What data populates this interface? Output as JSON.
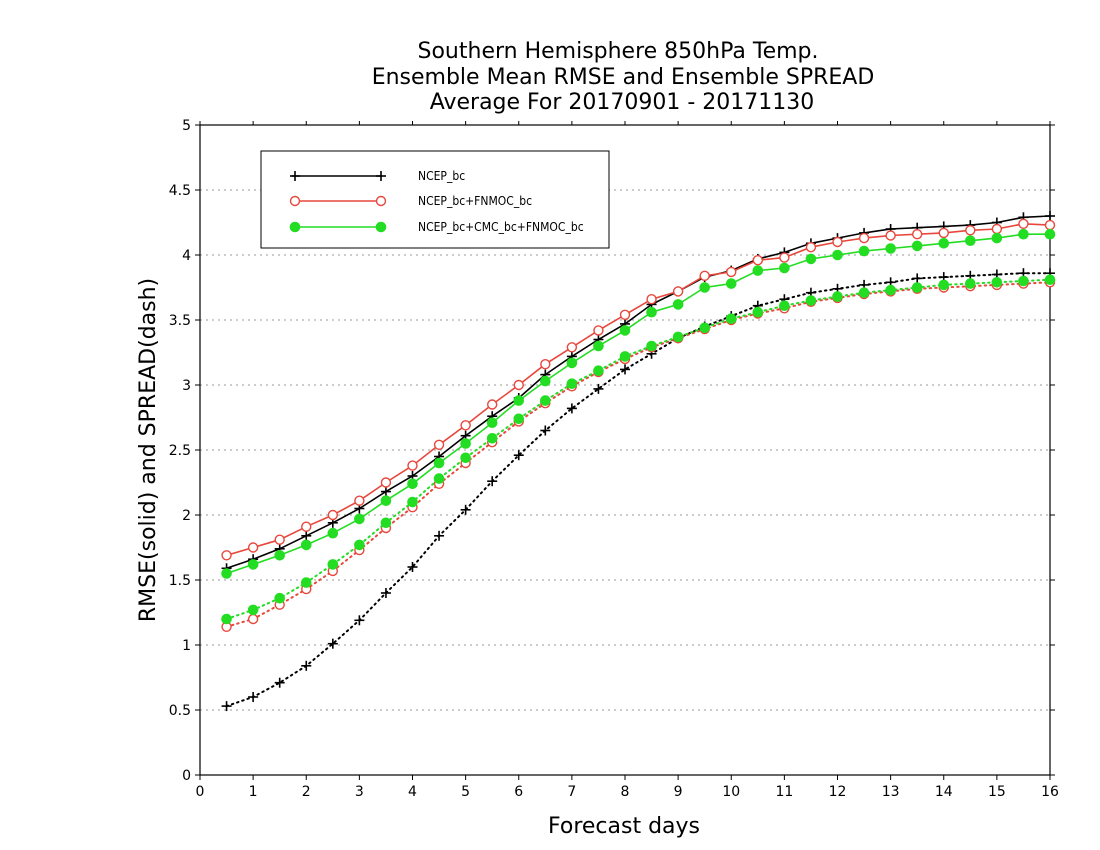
{
  "chart_data": {
    "type": "line",
    "title": [
      "Southern Hemisphere 850hPa Temp.",
      "Ensemble Mean RMSE and Ensemble SPREAD",
      "Average For 20170901 - 20171130"
    ],
    "xlabel": "Forecast days",
    "ylabel": "RMSE(solid) and SPREAD(dash)",
    "xlim": [
      0,
      16
    ],
    "ylim": [
      0,
      5
    ],
    "xticks": [
      "0",
      "1",
      "2",
      "3",
      "4",
      "5",
      "6",
      "7",
      "8",
      "9",
      "10",
      "11",
      "12",
      "13",
      "14",
      "15",
      "16"
    ],
    "yticks": [
      "0",
      "0.5",
      "1",
      "1.5",
      "2",
      "2.5",
      "3",
      "3.5",
      "4",
      "4.5",
      "5"
    ],
    "grid": "horizontal dotted",
    "legend_position": "top-left",
    "x": [
      0.5,
      1,
      1.5,
      2,
      2.5,
      3,
      3.5,
      4,
      4.5,
      5,
      5.5,
      6,
      6.5,
      7,
      7.5,
      8,
      8.5,
      9,
      9.5,
      10,
      10.5,
      11,
      11.5,
      12,
      12.5,
      13,
      13.5,
      14,
      14.5,
      15,
      15.5,
      16
    ],
    "series": [
      {
        "name": "NCEP_bc",
        "color": "#000000",
        "marker": "plus",
        "rmse": [
          1.59,
          1.66,
          1.74,
          1.84,
          1.94,
          2.05,
          2.18,
          2.3,
          2.45,
          2.61,
          2.76,
          2.9,
          3.08,
          3.22,
          3.35,
          3.47,
          3.62,
          3.72,
          3.83,
          3.88,
          3.97,
          4.02,
          4.09,
          4.13,
          4.17,
          4.2,
          4.21,
          4.22,
          4.23,
          4.25,
          4.29,
          4.3
        ],
        "spread": [
          0.53,
          0.6,
          0.71,
          0.84,
          1.01,
          1.19,
          1.4,
          1.6,
          1.84,
          2.04,
          2.26,
          2.46,
          2.65,
          2.82,
          2.97,
          3.12,
          3.24,
          3.36,
          3.45,
          3.53,
          3.61,
          3.66,
          3.71,
          3.74,
          3.77,
          3.79,
          3.82,
          3.83,
          3.84,
          3.85,
          3.86,
          3.86
        ]
      },
      {
        "name": "NCEP_bc+FNMOC_bc",
        "color": "#e8473c",
        "marker": "open-circle",
        "rmse": [
          1.69,
          1.75,
          1.81,
          1.91,
          2.0,
          2.11,
          2.25,
          2.38,
          2.54,
          2.69,
          2.85,
          3.0,
          3.16,
          3.29,
          3.42,
          3.54,
          3.66,
          3.72,
          3.84,
          3.87,
          3.96,
          3.98,
          4.06,
          4.1,
          4.13,
          4.15,
          4.16,
          4.17,
          4.19,
          4.2,
          4.24,
          4.23
        ],
        "spread": [
          1.14,
          1.2,
          1.31,
          1.43,
          1.57,
          1.73,
          1.9,
          2.06,
          2.24,
          2.4,
          2.56,
          2.72,
          2.86,
          2.99,
          3.1,
          3.2,
          3.29,
          3.36,
          3.43,
          3.5,
          3.55,
          3.59,
          3.64,
          3.67,
          3.7,
          3.72,
          3.74,
          3.75,
          3.76,
          3.77,
          3.78,
          3.79
        ]
      },
      {
        "name": "NCEP_bc+CMC_bc+FNMOC_bc",
        "color": "#22dd22",
        "marker": "filled-circle",
        "rmse": [
          1.55,
          1.62,
          1.69,
          1.77,
          1.86,
          1.97,
          2.11,
          2.24,
          2.4,
          2.55,
          2.71,
          2.88,
          3.03,
          3.17,
          3.3,
          3.42,
          3.56,
          3.62,
          3.75,
          3.78,
          3.88,
          3.9,
          3.97,
          4.0,
          4.03,
          4.05,
          4.07,
          4.09,
          4.11,
          4.13,
          4.16,
          4.16
        ],
        "spread": [
          1.2,
          1.27,
          1.36,
          1.48,
          1.62,
          1.77,
          1.94,
          2.1,
          2.28,
          2.44,
          2.59,
          2.74,
          2.88,
          3.01,
          3.11,
          3.22,
          3.3,
          3.37,
          3.44,
          3.51,
          3.56,
          3.61,
          3.65,
          3.68,
          3.71,
          3.73,
          3.75,
          3.77,
          3.78,
          3.79,
          3.8,
          3.81
        ]
      }
    ]
  }
}
